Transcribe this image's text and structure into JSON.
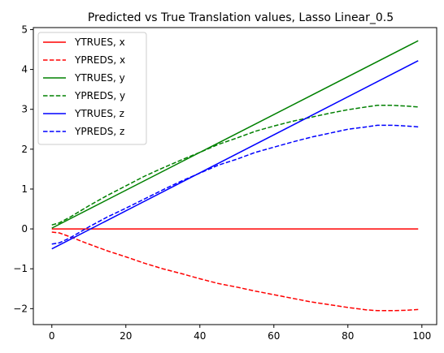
{
  "chart_data": {
    "type": "line",
    "title": "Predicted vs True Translation values, Lasso Linear_0.5",
    "xlabel": "",
    "ylabel": "",
    "xlim": [
      -5,
      104
    ],
    "ylim": [
      -2.4,
      5.05
    ],
    "xticks": [
      0,
      20,
      40,
      60,
      80,
      100
    ],
    "yticks": [
      -2,
      -1,
      0,
      1,
      2,
      3,
      4,
      5
    ],
    "xtick_labels": [
      "0",
      "20",
      "40",
      "60",
      "80",
      "100"
    ],
    "ytick_labels": [
      "−2",
      "−1",
      "0",
      "1",
      "2",
      "3",
      "4",
      "5"
    ],
    "grid": false,
    "legend_position": "upper-left",
    "series": [
      {
        "name": "YTRUES, x",
        "color": "#ff0000",
        "style": "solid",
        "x": [
          0,
          99
        ],
        "y": [
          0,
          0
        ]
      },
      {
        "name": "YPREDS, x",
        "color": "#ff0000",
        "style": "dashed",
        "x": [
          0,
          2,
          5,
          10,
          15,
          20,
          25,
          30,
          35,
          40,
          45,
          50,
          55,
          60,
          65,
          70,
          75,
          80,
          85,
          88,
          92,
          96,
          99
        ],
        "y": [
          -0.08,
          -0.1,
          -0.2,
          -0.38,
          -0.55,
          -0.7,
          -0.86,
          -1.0,
          -1.12,
          -1.25,
          -1.37,
          -1.46,
          -1.56,
          -1.65,
          -1.74,
          -1.83,
          -1.9,
          -1.97,
          -2.03,
          -2.05,
          -2.05,
          -2.04,
          -2.02
        ]
      },
      {
        "name": "YTRUES, y",
        "color": "#008000",
        "style": "solid",
        "x": [
          0,
          99
        ],
        "y": [
          0.02,
          4.72
        ]
      },
      {
        "name": "YPREDS, y",
        "color": "#008000",
        "style": "dashed",
        "x": [
          0,
          2,
          5,
          10,
          15,
          20,
          25,
          30,
          35,
          40,
          45,
          50,
          55,
          60,
          65,
          70,
          75,
          80,
          85,
          88,
          92,
          96,
          99
        ],
        "y": [
          0.1,
          0.15,
          0.3,
          0.58,
          0.84,
          1.08,
          1.32,
          1.53,
          1.73,
          1.92,
          2.12,
          2.28,
          2.45,
          2.58,
          2.7,
          2.8,
          2.9,
          2.99,
          3.06,
          3.1,
          3.1,
          3.08,
          3.06
        ]
      },
      {
        "name": "YTRUES, z",
        "color": "#0000ff",
        "style": "solid",
        "x": [
          0,
          99
        ],
        "y": [
          -0.5,
          4.22
        ]
      },
      {
        "name": "YPREDS, z",
        "color": "#0000ff",
        "style": "dashed",
        "x": [
          0,
          2,
          5,
          10,
          15,
          20,
          25,
          30,
          35,
          40,
          45,
          50,
          55,
          60,
          65,
          70,
          75,
          80,
          85,
          88,
          92,
          96,
          99
        ],
        "y": [
          -0.38,
          -0.35,
          -0.22,
          0.05,
          0.3,
          0.52,
          0.75,
          0.98,
          1.2,
          1.4,
          1.6,
          1.75,
          1.92,
          2.05,
          2.18,
          2.3,
          2.4,
          2.5,
          2.56,
          2.6,
          2.6,
          2.58,
          2.56
        ]
      }
    ]
  }
}
